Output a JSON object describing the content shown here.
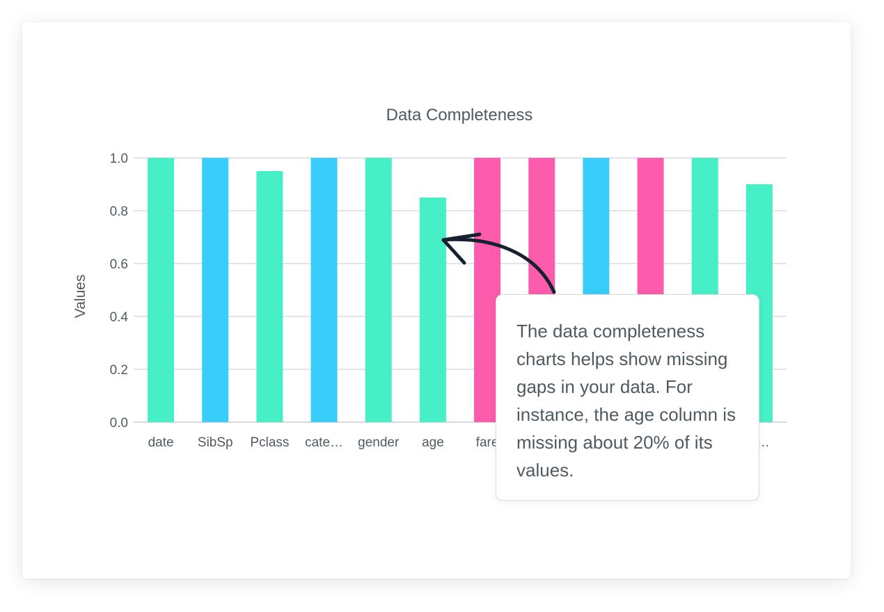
{
  "chart_data": {
    "type": "bar",
    "title": "Data Completeness",
    "xlabel": "",
    "ylabel": "Values",
    "ylim": [
      0,
      1
    ],
    "yticks": [
      "0.0",
      "0.2",
      "0.4",
      "0.6",
      "0.8",
      "1.0"
    ],
    "grid": true,
    "categories": [
      "date",
      "SibSp",
      "Pclass",
      "cate…",
      "gender",
      "age",
      "fare",
      "",
      "",
      "",
      "",
      "n…"
    ],
    "values": [
      1.0,
      1.0,
      0.95,
      1.0,
      1.0,
      0.85,
      1.0,
      1.0,
      1.0,
      1.0,
      1.0,
      0.9
    ],
    "bar_colors": [
      "#46efc6",
      "#38cdfb",
      "#46efc6",
      "#38cdfb",
      "#46efc6",
      "#46efc6",
      "#fd5bab",
      "#fd5bab",
      "#38cdfb",
      "#fd5bab",
      "#46efc6",
      "#46efc6"
    ]
  },
  "callout": {
    "text": "The data completeness charts helps show missing gaps in your data. For instance, the age column is missing about 20% of its values."
  },
  "colors": {
    "green": "#46efc6",
    "blue": "#38cdfb",
    "pink": "#fd5bab",
    "text": "#4f5a63",
    "grid": "#e2e5e8",
    "arrow": "#17202e"
  }
}
